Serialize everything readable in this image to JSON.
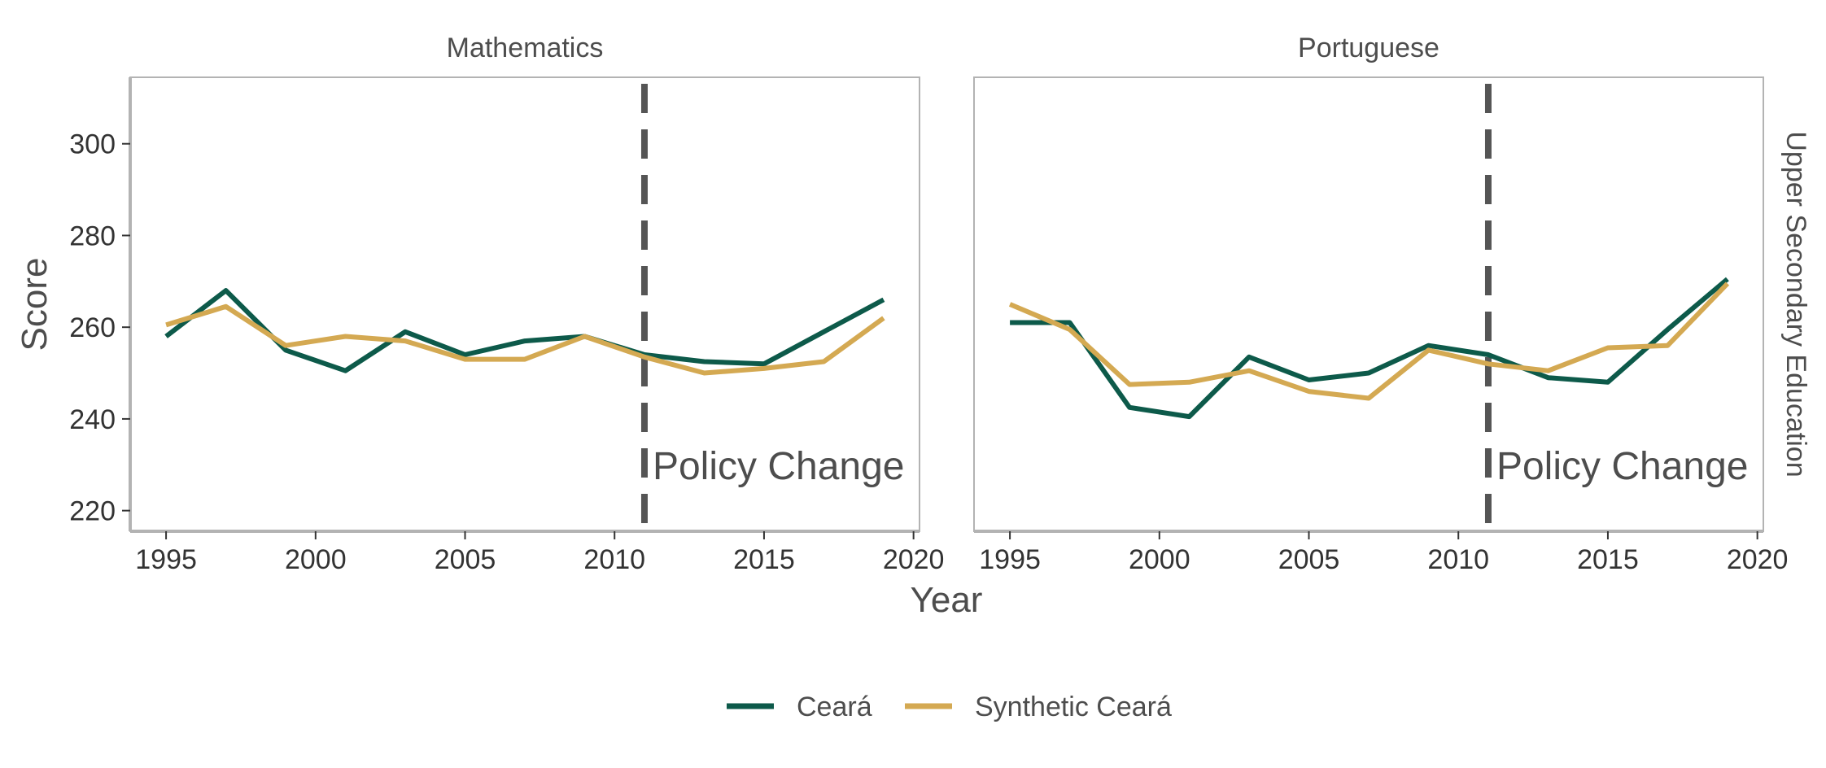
{
  "chart_data": {
    "type": "line",
    "facets": [
      {
        "title": "Mathematics",
        "series": [
          {
            "name": "Ceará",
            "x": [
              1995,
              1997,
              1999,
              2001,
              2003,
              2005,
              2007,
              2009,
              2011,
              2013,
              2015,
              2017,
              2019
            ],
            "values": [
              258,
              268,
              255,
              250.5,
              259,
              254,
              257,
              258,
              254,
              252.5,
              252,
              259,
              266
            ]
          },
          {
            "name": "Synthetic Ceará",
            "x": [
              1995,
              1997,
              1999,
              2001,
              2003,
              2005,
              2007,
              2009,
              2011,
              2013,
              2015,
              2017,
              2019
            ],
            "values": [
              260.5,
              264.5,
              256,
              258,
              257,
              253,
              253,
              258,
              253.5,
              250,
              251,
              252.5,
              262
            ]
          }
        ]
      },
      {
        "title": "Portuguese",
        "series": [
          {
            "name": "Ceará",
            "x": [
              1995,
              1997,
              1999,
              2001,
              2003,
              2005,
              2007,
              2009,
              2011,
              2013,
              2015,
              2017,
              2019
            ],
            "values": [
              261,
              261,
              242.5,
              240.5,
              253.5,
              248.5,
              250,
              256,
              254,
              249,
              248,
              259.5,
              270.5
            ]
          },
          {
            "name": "Synthetic Ceará",
            "x": [
              1995,
              1997,
              1999,
              2001,
              2003,
              2005,
              2007,
              2009,
              2011,
              2013,
              2015,
              2017,
              2019
            ],
            "values": [
              265,
              259.5,
              247.5,
              248,
              250.5,
              246,
              244.5,
              255,
              252,
              250.5,
              255.5,
              256,
              269.5
            ]
          }
        ]
      }
    ],
    "row_strip": "Upper Secondary Education",
    "xlabel": "Year",
    "ylabel": "Score",
    "xlim": [
      1993.8,
      2020.2
    ],
    "ylim": [
      215.5,
      314.5
    ],
    "xticks": [
      1995,
      2000,
      2005,
      2010,
      2015,
      2020
    ],
    "yticks": [
      220,
      240,
      260,
      280,
      300
    ],
    "vline": {
      "x": 2011,
      "label": "Policy Change"
    },
    "legend": {
      "position": "bottom"
    },
    "colors": {
      "Ceará": "#0d5a4a",
      "Synthetic Ceará": "#d4a952",
      "vline": "#555555",
      "frame": "#b3b3b3"
    }
  }
}
